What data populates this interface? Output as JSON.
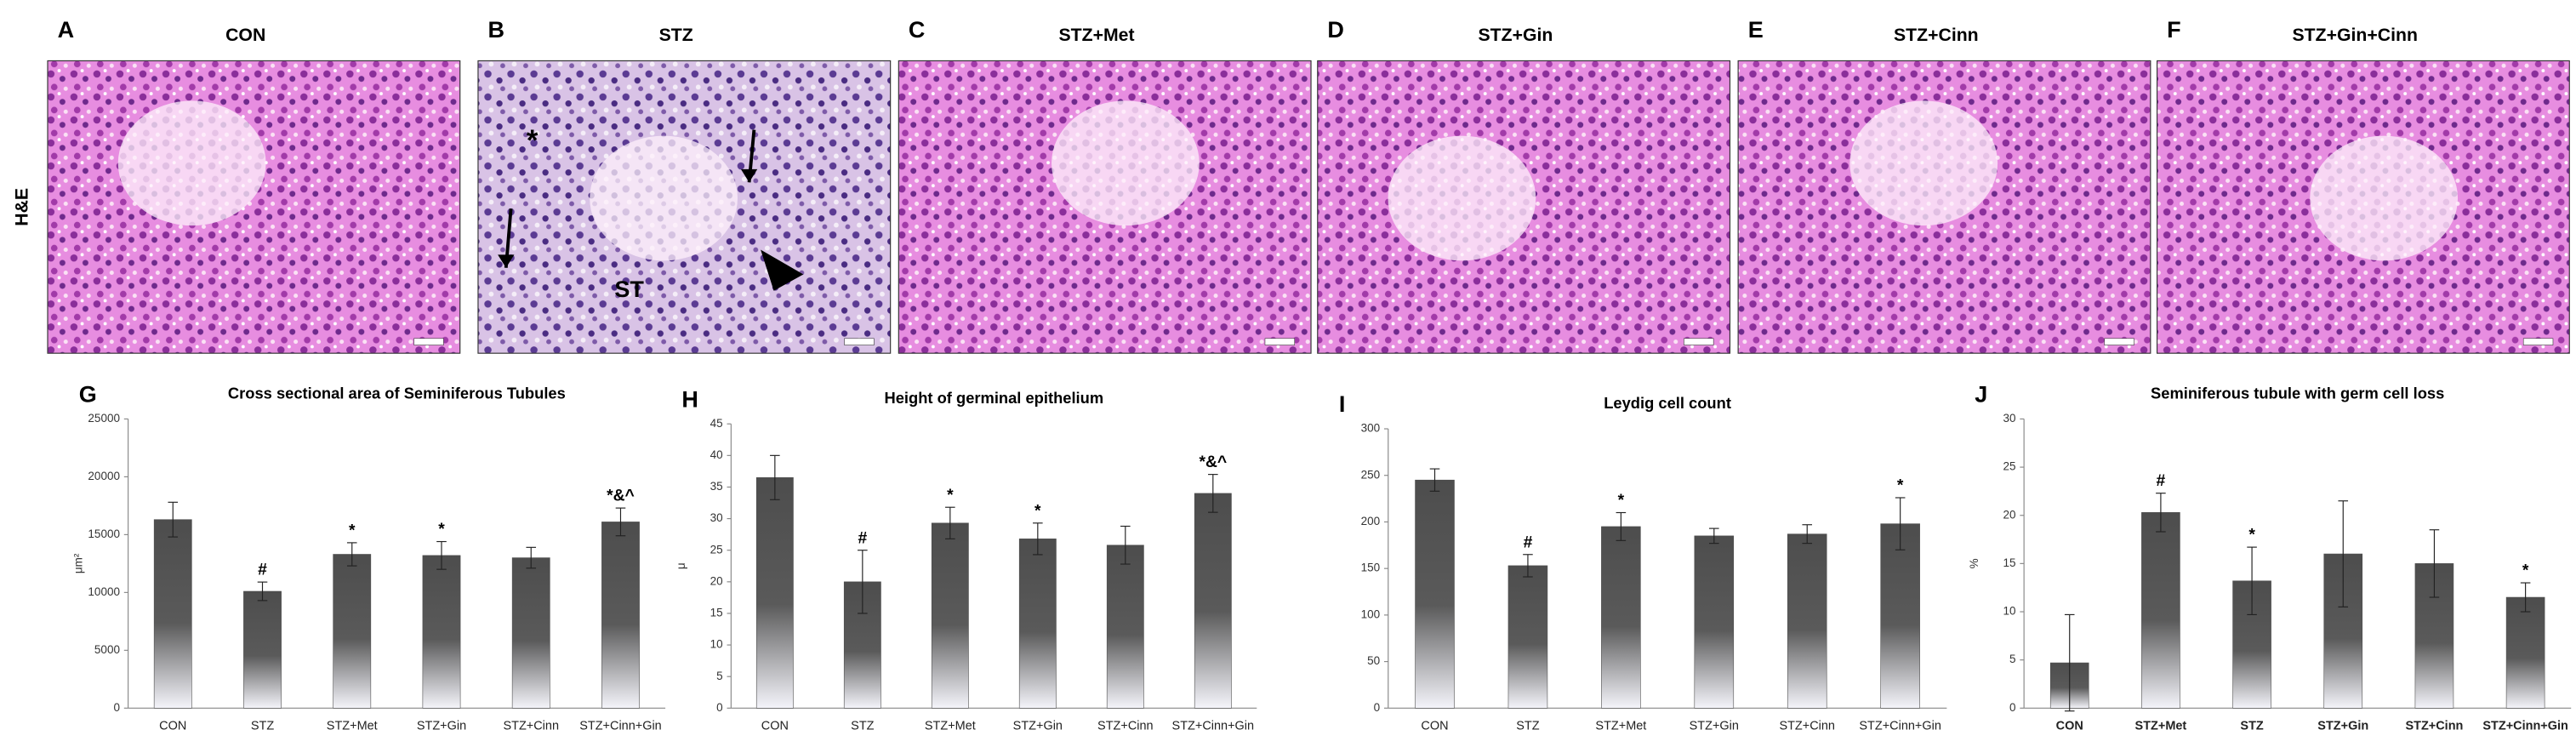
{
  "row_label": "H&E",
  "panels": [
    {
      "letter": "A",
      "title": "CON"
    },
    {
      "letter": "B",
      "title": "STZ",
      "annotations": [
        "*",
        "ST"
      ]
    },
    {
      "letter": "C",
      "title": "STZ+Met"
    },
    {
      "letter": "D",
      "title": "STZ+Gin"
    },
    {
      "letter": "E",
      "title": "STZ+Cinn"
    },
    {
      "letter": "F",
      "title": "STZ+Gin+Cinn"
    }
  ],
  "chart_data": [
    {
      "type": "bar",
      "letter": "G",
      "title": "Cross sectional area of Seminiferous Tubules",
      "ylabel": "μm²",
      "categories": [
        "CON",
        "STZ",
        "STZ+Met",
        "STZ+Gin",
        "STZ+Cinn",
        "STZ+Cinn+Gin"
      ],
      "values": [
        16300,
        10100,
        13300,
        13200,
        13000,
        16100
      ],
      "errors": [
        1500,
        800,
        1000,
        1200,
        900,
        1200
      ],
      "annotations": [
        null,
        "#",
        "*",
        "*",
        null,
        "*&^"
      ],
      "color": "#4d4d4d",
      "ylim": [
        0,
        25000
      ],
      "yticks": [
        0,
        5000,
        10000,
        15000,
        20000,
        25000
      ]
    },
    {
      "type": "bar",
      "letter": "H",
      "title": "Height of germinal epithelium",
      "ylabel": "μ",
      "categories": [
        "CON",
        "STZ",
        "STZ+Met",
        "STZ+Gin",
        "STZ+Cinn",
        "STZ+Cinn+Gin"
      ],
      "values": [
        36.5,
        20,
        29.3,
        26.8,
        25.8,
        34
      ],
      "errors": [
        3.5,
        5,
        2.5,
        2.5,
        3,
        3
      ],
      "annotations": [
        null,
        "#",
        "*",
        "*",
        null,
        "*&^"
      ],
      "color": "#4d4d4d",
      "ylim": [
        0,
        45
      ],
      "yticks": [
        0,
        5,
        10,
        15,
        20,
        25,
        30,
        35,
        40,
        45
      ]
    },
    {
      "type": "bar",
      "letter": "I",
      "title": "Leydig cell count",
      "categories": [
        "CON",
        "STZ",
        "STZ+Met",
        "STZ+Gin",
        "STZ+Cinn",
        "STZ+Cinn+Gin"
      ],
      "values": [
        245,
        153,
        195,
        185,
        187,
        198
      ],
      "errors": [
        12,
        12,
        15,
        8,
        10,
        28
      ],
      "annotations": [
        null,
        "#",
        "*",
        null,
        null,
        "*"
      ],
      "color": "#4d4d4d",
      "ylim": [
        0,
        300
      ],
      "yticks": [
        0,
        50,
        100,
        150,
        200,
        250,
        300
      ]
    },
    {
      "type": "bar",
      "letter": "J",
      "title": "Seminiferous tubule with germ cell loss",
      "ylabel": "%",
      "categories": [
        "CON",
        "STZ+Met",
        "STZ",
        "STZ+Gin",
        "STZ+Cinn",
        "STZ+Cinn+Gin"
      ],
      "values": [
        4.7,
        20.3,
        13.2,
        16,
        15,
        11.5
      ],
      "errors": [
        5,
        2,
        3.5,
        5.5,
        3.5,
        1.5
      ],
      "annotations": [
        null,
        "#",
        "*",
        null,
        null,
        "*"
      ],
      "bold_categories": true,
      "color": "#4d4d4d",
      "ylim": [
        0,
        30
      ],
      "yticks": [
        0,
        5,
        10,
        15,
        20,
        25,
        30
      ]
    }
  ]
}
